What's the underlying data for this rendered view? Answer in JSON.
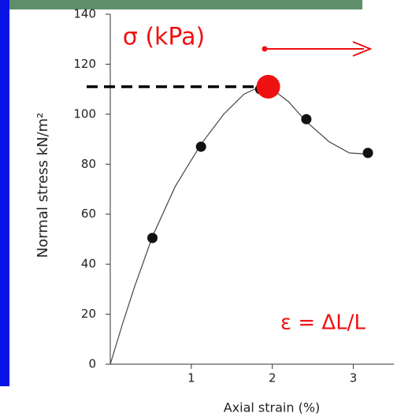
{
  "chart_data": {
    "type": "scatter",
    "y_label": "Normal stress kN/m²",
    "x_label": "Axial strain (%)",
    "annotations": [
      "σ (kPa)",
      "ε = ΔL/L"
    ],
    "x": [
      0.52,
      1.12,
      1.85,
      2.42,
      3.18
    ],
    "values": [
      50.5,
      87,
      110,
      98,
      84.5
    ],
    "color": "#111111",
    "curve": {
      "x": [
        0,
        0.15,
        0.3,
        0.52,
        0.8,
        1.12,
        1.4,
        1.65,
        1.85,
        2.0,
        2.2,
        2.42,
        2.7,
        2.95,
        3.2
      ],
      "values": [
        0,
        16,
        31,
        51,
        71,
        88,
        100,
        108,
        111,
        110,
        105,
        97,
        89,
        84.5,
        84
      ]
    },
    "highlight": {
      "x": 1.95,
      "value": 111,
      "color": "#ee1111"
    },
    "xlim": [
      0,
      3.5
    ],
    "ylim": [
      0,
      140
    ],
    "xticks": [
      1,
      2,
      3
    ],
    "yticks": [
      0,
      20,
      40,
      60,
      80,
      100,
      120,
      140
    ]
  }
}
